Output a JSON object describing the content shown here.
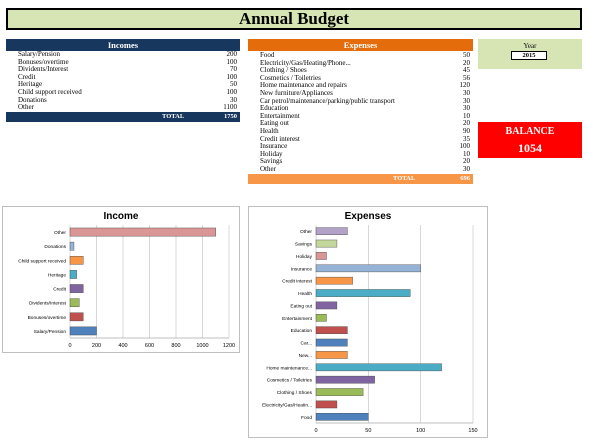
{
  "title": "Annual Budget",
  "incomes": {
    "header": "Incomes",
    "header_color": "#17375e",
    "rows": [
      {
        "label": "Salary/Pension",
        "value": "200"
      },
      {
        "label": "Bonuses/overtime",
        "value": "100"
      },
      {
        "label": "Dividents/Interest",
        "value": "70"
      },
      {
        "label": "Credit",
        "value": "100"
      },
      {
        "label": "Heritage",
        "value": "50"
      },
      {
        "label": "Child support received",
        "value": "100"
      },
      {
        "label": "Donations",
        "value": "30"
      },
      {
        "label": "Other",
        "value": "1100"
      }
    ],
    "total_label": "TOTAL",
    "total_value": "1750"
  },
  "expenses": {
    "header": "Expenses",
    "header_color": "#e46c0a",
    "rows": [
      {
        "label": "Food",
        "value": "50"
      },
      {
        "label": "Electricity/Gas/Heating/Phone...",
        "value": "20"
      },
      {
        "label": "Clothing / Shoes",
        "value": "45"
      },
      {
        "label": "Cosmetics / Toiletries",
        "value": "56"
      },
      {
        "label": "Home maintenance and repairs",
        "value": "120"
      },
      {
        "label": "New furniture/Appliances",
        "value": "30"
      },
      {
        "label": "Car petrol/maintenance/parking/public transport",
        "value": "30"
      },
      {
        "label": "Education",
        "value": "30"
      },
      {
        "label": "Entertainment",
        "value": "10"
      },
      {
        "label": "Eating out",
        "value": "20"
      },
      {
        "label": "Health",
        "value": "90"
      },
      {
        "label": "Credit interest",
        "value": "35"
      },
      {
        "label": "Insurance",
        "value": "100"
      },
      {
        "label": "Holiday",
        "value": "10"
      },
      {
        "label": "Savings",
        "value": "20"
      },
      {
        "label": "Other",
        "value": "30"
      }
    ],
    "total_label": "TOTAL",
    "total_value": "696"
  },
  "year": {
    "label": "Year",
    "value": "2015"
  },
  "balance": {
    "label": "BALANCE",
    "value": "1054"
  },
  "chart_data": [
    {
      "type": "bar",
      "orientation": "horizontal",
      "title": "Income",
      "categories": [
        "Salary/Pension",
        "Bonuses/overtime",
        "Dividents/Interest",
        "Credit",
        "Heritage",
        "Child support received",
        "Donations",
        "Other"
      ],
      "values": [
        200,
        100,
        70,
        100,
        50,
        100,
        30,
        1100
      ],
      "colors": [
        "#4f81bd",
        "#c0504d",
        "#9bbb59",
        "#8064a2",
        "#4bacc6",
        "#f79646",
        "#95b3d7",
        "#d99694"
      ],
      "xlim": [
        0,
        1200
      ],
      "ticks": [
        0,
        200,
        400,
        600,
        800,
        1000,
        1200
      ],
      "grid": true
    },
    {
      "type": "bar",
      "orientation": "horizontal",
      "title": "Expenses",
      "categories": [
        "Food",
        "Electricity/Gas/Heatin...",
        "Clothing / Shoes",
        "Cosmetics / Toiletries",
        "Home maintenance...",
        "New...",
        "Car...",
        "Education",
        "Entertainment",
        "Eating out",
        "Health",
        "Credit interest",
        "Insurance",
        "Holiday",
        "Savings",
        "Other"
      ],
      "values": [
        50,
        20,
        45,
        56,
        120,
        30,
        30,
        30,
        10,
        20,
        90,
        35,
        100,
        10,
        20,
        30
      ],
      "colors": [
        "#4f81bd",
        "#c0504d",
        "#9bbb59",
        "#8064a2",
        "#4bacc6",
        "#f79646",
        "#4f81bd",
        "#c0504d",
        "#9bbb59",
        "#8064a2",
        "#4bacc6",
        "#f79646",
        "#95b3d7",
        "#d99694",
        "#c3d69b",
        "#b3a2c7"
      ],
      "xlim": [
        0,
        150
      ],
      "ticks": [
        0,
        50,
        100,
        150
      ],
      "grid": true
    }
  ]
}
